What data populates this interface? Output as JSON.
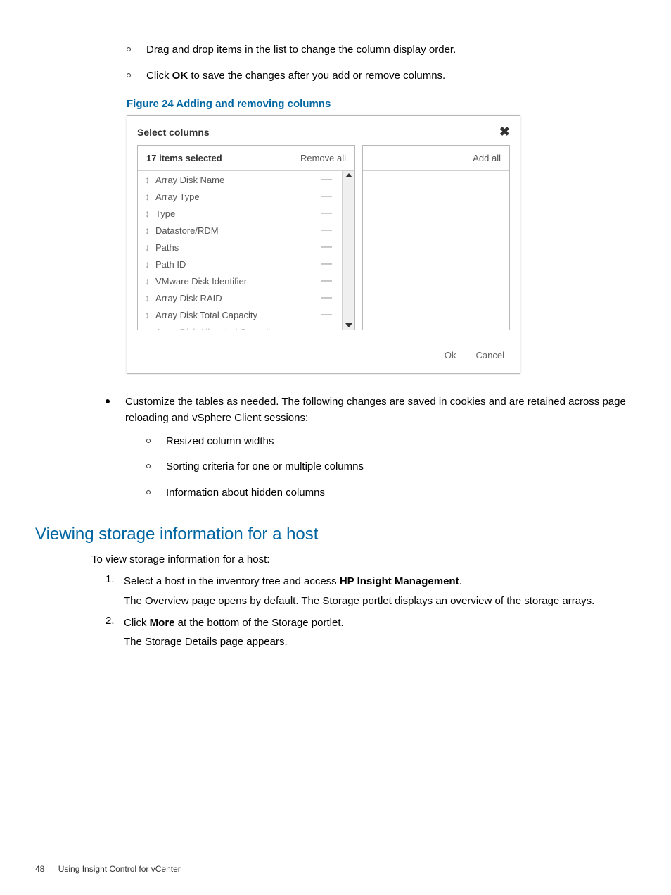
{
  "top_sublist": [
    "Drag and drop items in the list to change the column display order.",
    {
      "pre": "Click ",
      "bold": "OK",
      "post": " to save the changes after you add or remove columns."
    }
  ],
  "figure_caption": "Figure 24 Adding and removing columns",
  "dialog": {
    "title": "Select columns",
    "left_header": "17 items selected",
    "remove_all": "Remove all",
    "add_all": "Add all",
    "items": [
      "Array Disk Name",
      "Array Type",
      "Type",
      "Datastore/RDM",
      "Paths",
      "Path ID",
      "VMware Disk Identifier",
      "Array Disk RAID",
      "Array Disk Total Capacity"
    ],
    "clipped_item": "Array Disk Allocated Capacity",
    "drag_glyph": "↕",
    "minus_glyph": "—",
    "ok": "Ok",
    "cancel": "Cancel"
  },
  "customize_intro": "Customize the tables as needed. The following changes are saved in cookies and are retained across page reloading and vSphere Client sessions:",
  "customize_sublist": [
    "Resized column widths",
    "Sorting criteria for one or multiple columns",
    "Information about hidden columns"
  ],
  "section_heading": "Viewing storage information for a host",
  "section_intro": "To view storage information for a host:",
  "steps": [
    {
      "num": "1.",
      "line1_pre": "Select a host in the inventory tree and access ",
      "line1_bold": "HP Insight Management",
      "line1_post": ".",
      "line2": "The Overview page opens by default. The Storage portlet displays an overview of the storage arrays."
    },
    {
      "num": "2.",
      "line1_pre": "Click ",
      "line1_bold": "More",
      "line1_post": " at the bottom of the Storage portlet.",
      "line2": "The Storage Details page appears."
    }
  ],
  "footer": {
    "page": "48",
    "chapter": "Using Insight Control for vCenter"
  }
}
